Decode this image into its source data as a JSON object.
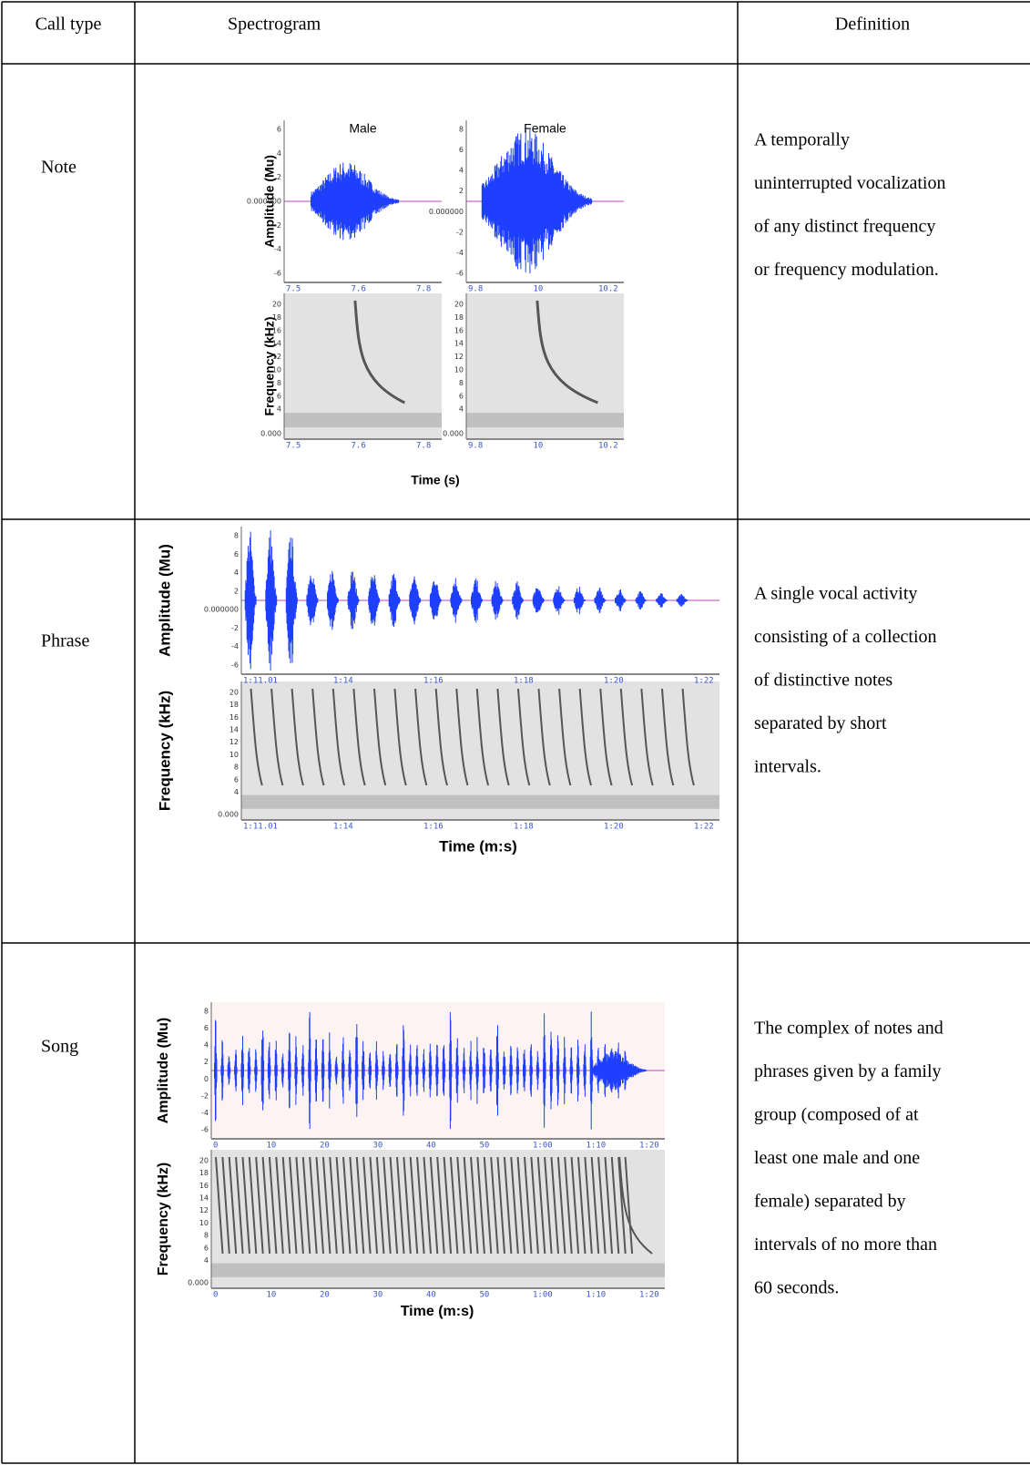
{
  "table": {
    "header": [
      "Call type",
      "Spectrogram",
      "Definition"
    ],
    "rows": [
      {
        "call_type": "Note",
        "definition_lines": [
          "A temporally",
          "uninterrupted vocalization",
          "of any distinct frequency",
          "or frequency modulation."
        ],
        "figure": {
          "amplitude_label": "Amplitude (Mu)",
          "frequency_label": "Frequency (kHz)",
          "time_label": "Time (s)",
          "panels": [
            {
              "title": "Male",
              "amplitude_ticks": [
                "6",
                "4",
                "2",
                "0.000000",
                "-2",
                "-4",
                "-6"
              ],
              "frequency_ticks": [
                "20",
                "18",
                "16",
                "14",
                "12",
                "10",
                "8",
                "6",
                "4",
                "0.000"
              ],
              "time_ticks": [
                "7.5",
                "7.6",
                "7.8"
              ]
            },
            {
              "title": "Female",
              "amplitude_ticks": [
                "8",
                "6",
                "4",
                "2",
                "0.000000",
                "-2",
                "-4",
                "-6"
              ],
              "frequency_ticks": [
                "20",
                "18",
                "16",
                "14",
                "12",
                "10",
                "8",
                "6",
                "4",
                "0.000"
              ],
              "time_ticks": [
                "9.8",
                "10",
                "10.2"
              ]
            }
          ]
        }
      },
      {
        "call_type": "Phrase",
        "definition_lines": [
          "A single vocal activity",
          "consisting of a collection",
          "of distinctive notes",
          "separated by short",
          "intervals."
        ],
        "figure": {
          "amplitude_label": "Amplitude (Mu)",
          "frequency_label": "Frequency (kHz)",
          "time_label": "Time (m:s)",
          "panels": [
            {
              "amplitude_ticks": [
                "8",
                "6",
                "4",
                "2",
                "0.000000",
                "-2",
                "-4",
                "-6"
              ],
              "frequency_ticks": [
                "20",
                "18",
                "16",
                "14",
                "12",
                "10",
                "8",
                "6",
                "4",
                "0.000"
              ],
              "time_ticks": [
                "1:11.01",
                "1:14",
                "1:16",
                "1:18",
                "1:20",
                "1:22"
              ]
            }
          ]
        }
      },
      {
        "call_type": "Song",
        "definition_lines": [
          "The complex of notes and",
          "phrases given by a family",
          "group (composed of at",
          "least one male and one",
          "female) separated by",
          "intervals of no more than",
          "60 seconds."
        ],
        "figure": {
          "amplitude_label": "Amplitude (Mu)",
          "frequency_label": "Frequency (kHz)",
          "time_label": "Time (m:s)",
          "panels": [
            {
              "amplitude_ticks": [
                "8",
                "6",
                "4",
                "2",
                "0",
                "-2",
                "-4",
                "-6"
              ],
              "frequency_ticks": [
                "20",
                "18",
                "16",
                "14",
                "12",
                "10",
                "8",
                "6",
                "4",
                "0.000"
              ],
              "time_ticks": [
                "0",
                "10",
                "20",
                "30",
                "40",
                "50",
                "1:00",
                "1:10",
                "1:20"
              ]
            }
          ]
        }
      }
    ]
  }
}
